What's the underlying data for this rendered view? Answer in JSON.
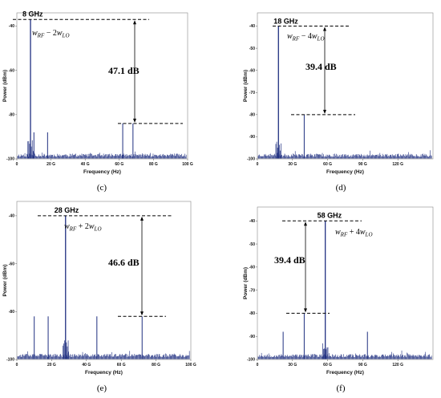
{
  "panels": [
    {
      "caption": "(c)",
      "chart_data": {
        "type": "line",
        "xlabel": "Frequency (Hz)",
        "ylabel": "Power (dBm)",
        "xlim": [
          0,
          100
        ],
        "ylim": [
          -100,
          -34
        ],
        "x_ticks": [
          "0",
          "20 G",
          "40 G",
          "60 G",
          "80 G",
          "100 G"
        ],
        "y_ticks": [
          "-40",
          "-60",
          "-80",
          "-100"
        ],
        "peaks": [
          {
            "x": 8,
            "y": -37
          },
          {
            "x": 10,
            "y": -88
          },
          {
            "x": 18,
            "y": -88
          },
          {
            "x": 62,
            "y": -84
          },
          {
            "x": 68,
            "y": -84
          }
        ],
        "noise_floor": -98,
        "main_label": "8 GHz",
        "main_formula": {
          "base": "w",
          "sub1": "RF",
          "op": " − 2",
          "sub2": "LO"
        },
        "delta_db": "47.1 dB",
        "noise_seed": 11
      }
    },
    {
      "caption": "(d)",
      "chart_data": {
        "type": "line",
        "xlabel": "Frequency (Hz)",
        "ylabel": "Power (dBm)",
        "xlim": [
          0,
          150
        ],
        "ylim": [
          -100,
          -34
        ],
        "x_ticks": [
          "0",
          "30 G",
          "60 G",
          "90 G",
          "120 G"
        ],
        "y_ticks": [
          "-40",
          "-50",
          "-60",
          "-70",
          "-80",
          "-90",
          "-100"
        ],
        "peaks": [
          {
            "x": 18,
            "y": -40
          },
          {
            "x": 40,
            "y": -80
          }
        ],
        "noise_floor": -98,
        "main_label": "18 GHz",
        "main_formula": {
          "base": "w",
          "sub1": "RF",
          "op": " − 4",
          "sub2": "LO"
        },
        "delta_db": "39.4 dB",
        "noise_seed": 23
      }
    },
    {
      "caption": "(e)",
      "chart_data": {
        "type": "line",
        "xlabel": "Frequency (Hz)",
        "ylabel": "Power (dBm)",
        "xlim": [
          0,
          100
        ],
        "ylim": [
          -100,
          -34
        ],
        "x_ticks": [
          "0",
          "20 G",
          "40 G",
          "60 G",
          "80 G",
          "100 G"
        ],
        "y_ticks": [
          "-40",
          "-60",
          "-80",
          "-100"
        ],
        "peaks": [
          {
            "x": 10,
            "y": -82
          },
          {
            "x": 18,
            "y": -82
          },
          {
            "x": 28,
            "y": -40
          },
          {
            "x": 46,
            "y": -82
          },
          {
            "x": 72,
            "y": -82
          }
        ],
        "noise_floor": -98,
        "main_label": "28 GHz",
        "main_formula": {
          "base": "w",
          "sub1": "RF",
          "op": " + 2",
          "sub2": "LO"
        },
        "delta_db": "46.6 dB",
        "noise_seed": 37
      }
    },
    {
      "caption": "(f)",
      "chart_data": {
        "type": "line",
        "xlabel": "Frequency (Hz)",
        "ylabel": "Power (dBm)",
        "xlim": [
          0,
          150
        ],
        "ylim": [
          -100,
          -34
        ],
        "x_ticks": [
          "0",
          "30 G",
          "60 G",
          "90 G",
          "120 G"
        ],
        "y_ticks": [
          "-40",
          "-50",
          "-60",
          "-70",
          "-80",
          "-90",
          "-100"
        ],
        "peaks": [
          {
            "x": 22,
            "y": -88
          },
          {
            "x": 40,
            "y": -80
          },
          {
            "x": 58,
            "y": -40
          },
          {
            "x": 94,
            "y": -88
          }
        ],
        "noise_floor": -98,
        "main_label": "58 GHz",
        "main_formula": {
          "base": "w",
          "sub1": "RF",
          "op": " + 4",
          "sub2": "LO"
        },
        "delta_db": "39.4 dB",
        "noise_seed": 53
      }
    }
  ]
}
